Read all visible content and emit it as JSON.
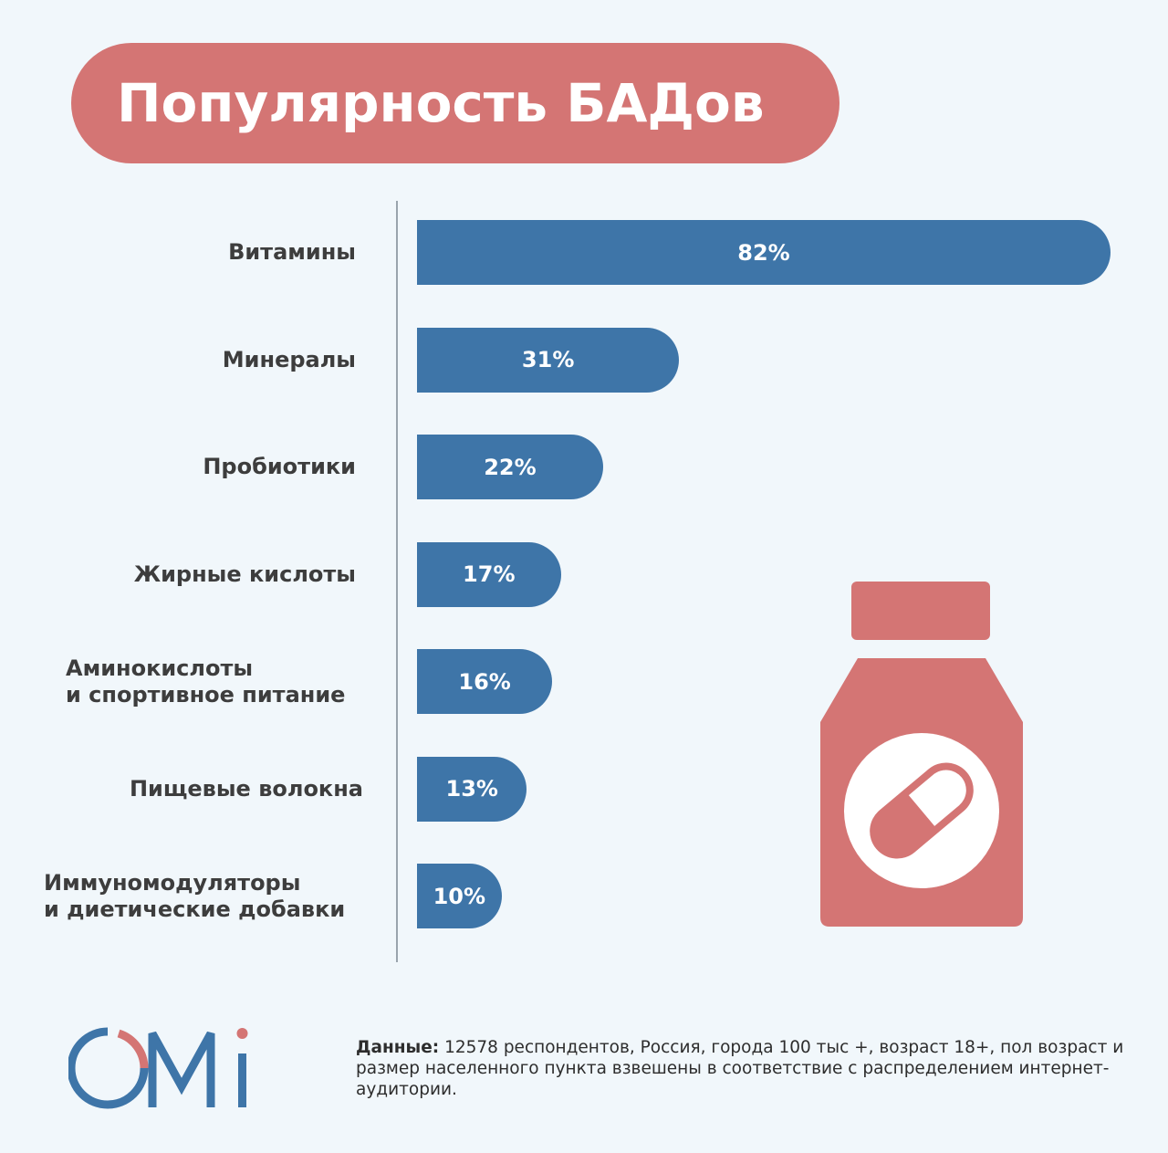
{
  "title": "Популярность БАДов",
  "chart_data": {
    "type": "bar",
    "orientation": "horizontal",
    "categories": [
      [
        "Витамины"
      ],
      [
        "Минералы"
      ],
      [
        "Пробиотики"
      ],
      [
        "Жирные кислоты"
      ],
      [
        "Аминокислоты",
        "и спортивное питание"
      ],
      [
        "Пищевые волокна"
      ],
      [
        "Иммуномодуляторы",
        "и диетические добавки"
      ]
    ],
    "values": [
      82,
      31,
      22,
      17,
      16,
      13,
      10
    ],
    "value_labels": [
      "82%",
      "31%",
      "22%",
      "17%",
      "16%",
      "13%",
      "10%"
    ],
    "unit": "%",
    "xlim": [
      0,
      82
    ],
    "bar_color": "#3e75a8",
    "grid": false
  },
  "colors": {
    "accent": "#d47574",
    "bar": "#3e75a8",
    "background": "#f1f7fb",
    "text": "#3d3d3d"
  },
  "illustration": {
    "icon": "pill-bottle-icon"
  },
  "logo": {
    "text": "OMI",
    "icon": "omi-logo"
  },
  "footnote": {
    "label": "Данные:",
    "text": " 12578 респондентов, Россия, города 100 тыс +, возраст 18+, пол возраст и размер населенного пункта взвешены в соответствие с распределением интернет-аудитории."
  }
}
